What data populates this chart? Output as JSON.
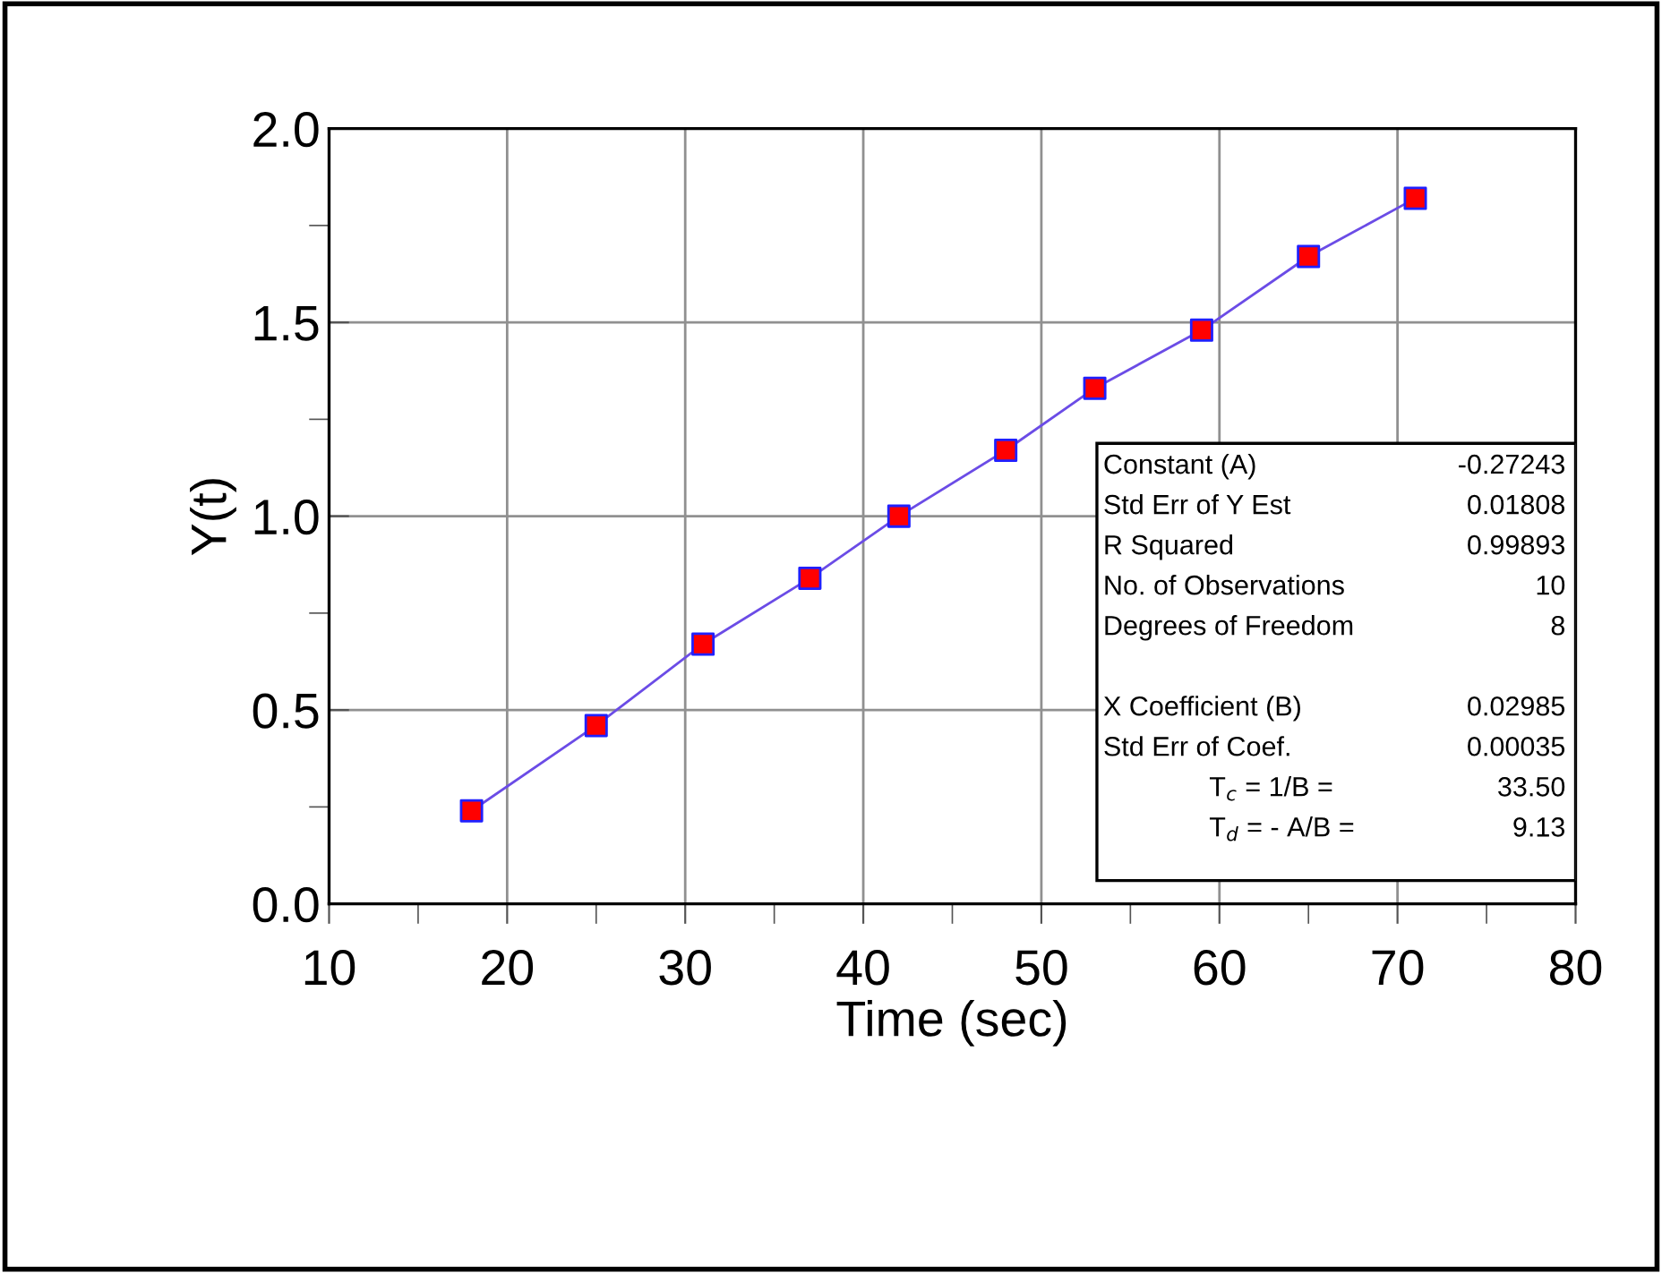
{
  "chart_data": {
    "type": "line",
    "xlabel": "Time (sec)",
    "ylabel": "Y(t)",
    "x": [
      18,
      25,
      31,
      37,
      42,
      48,
      53,
      59,
      65,
      71
    ],
    "series": [
      {
        "color": "#6b4ce6",
        "colors": [
          "#ff0000",
          "#ff0000",
          "#ff0000",
          "#ff0000",
          "#ff0000",
          "#ff0000",
          "#ff0000",
          "#ff0000",
          "#ff0000",
          "#ff0000"
        ],
        "values": [
          0.24,
          0.46,
          0.67,
          0.84,
          1.0,
          1.17,
          1.33,
          1.48,
          1.67,
          1.82
        ]
      }
    ],
    "xlim": [
      10,
      80
    ],
    "xticks": [
      10,
      20,
      30,
      40,
      50,
      60,
      70,
      80
    ],
    "ylim": [
      0,
      2.0
    ],
    "yticks": [
      {
        "value": 0,
        "label": "0.0"
      },
      0.5,
      {
        "value": 1,
        "label": "1.0"
      },
      1.5,
      {
        "value": 2,
        "label": "2.0"
      }
    ],
    "grid": true,
    "marker": "square",
    "line_style": "solid",
    "annotations": [
      "Constant (A)",
      "-0.27243",
      "Std Err of Y Est",
      "0.01808",
      "R Squared",
      "0.99893",
      "No. of Observations",
      "10",
      "Degrees of Freedom",
      "8",
      "X Coefficient (B)",
      "0.02985",
      "Std Err of Coef.",
      "0.00035",
      "T$_{c}$ = 1/B =",
      "33.50",
      "T$_{d}$ = - A/B =",
      "9.13"
    ]
  }
}
